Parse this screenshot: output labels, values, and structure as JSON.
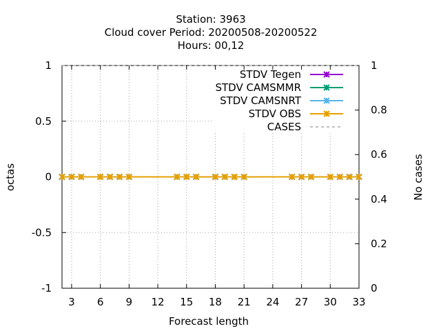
{
  "chart_data": {
    "type": "line",
    "title_lines": [
      "Station:     3963",
      "Cloud cover   Period: 20200508-20200522",
      "Hours:  00,12"
    ],
    "xlabel": "Forecast length",
    "ylabel": "octas",
    "y2label": "No cases",
    "xlim": [
      2,
      33
    ],
    "ylim": [
      -1,
      1
    ],
    "y2lim": [
      0,
      1
    ],
    "x_ticks": [
      3,
      6,
      9,
      12,
      15,
      18,
      21,
      24,
      27,
      30,
      33
    ],
    "y_ticks": [
      -1,
      -0.5,
      0,
      0.5,
      1
    ],
    "y_tick_labels": [
      "-1",
      "-0.5",
      "0",
      "0.5",
      "1"
    ],
    "y2_ticks": [
      0,
      0.2,
      0.4,
      0.6,
      0.8,
      1
    ],
    "y2_tick_labels": [
      "0",
      "0.2",
      "0.4",
      "0.6",
      "0.8",
      "1"
    ],
    "grid": true,
    "legend_position": "top-right",
    "series": [
      {
        "name": "STDV Tegen",
        "color": "#9400d3",
        "marker": "x",
        "dash": "solid",
        "x": [
          2,
          3,
          4,
          6,
          7,
          8,
          9,
          14,
          15,
          16,
          18,
          19,
          20,
          21,
          26,
          27,
          28,
          30,
          31,
          32,
          33
        ],
        "values": [
          0,
          0,
          0,
          0,
          0,
          0,
          0,
          0,
          0,
          0,
          0,
          0,
          0,
          0,
          0,
          0,
          0,
          0,
          0,
          0,
          0
        ]
      },
      {
        "name": "STDV CAMSMMR",
        "color": "#009e73",
        "marker": "x",
        "dash": "solid",
        "x": [
          2,
          3,
          4,
          6,
          7,
          8,
          9,
          14,
          15,
          16,
          18,
          19,
          20,
          21,
          26,
          27,
          28,
          30,
          31,
          32,
          33
        ],
        "values": [
          0,
          0,
          0,
          0,
          0,
          0,
          0,
          0,
          0,
          0,
          0,
          0,
          0,
          0,
          0,
          0,
          0,
          0,
          0,
          0,
          0
        ]
      },
      {
        "name": "STDV CAMSNRT",
        "color": "#56b4e9",
        "marker": "x",
        "dash": "solid",
        "x": [
          2,
          3,
          4,
          6,
          7,
          8,
          9,
          14,
          15,
          16,
          18,
          19,
          20,
          21,
          26,
          27,
          28,
          30,
          31,
          32,
          33
        ],
        "values": [
          0,
          0,
          0,
          0,
          0,
          0,
          0,
          0,
          0,
          0,
          0,
          0,
          0,
          0,
          0,
          0,
          0,
          0,
          0,
          0,
          0
        ]
      },
      {
        "name": "STDV OBS",
        "color": "#e69f00",
        "marker": "x",
        "dash": "solid",
        "x": [
          2,
          3,
          4,
          6,
          7,
          8,
          9,
          14,
          15,
          16,
          18,
          19,
          20,
          21,
          26,
          27,
          28,
          30,
          31,
          32,
          33
        ],
        "values": [
          0,
          0,
          0,
          0,
          0,
          0,
          0,
          0,
          0,
          0,
          0,
          0,
          0,
          0,
          0,
          0,
          0,
          0,
          0,
          0,
          0
        ]
      },
      {
        "name": "CASES",
        "color": "#808080",
        "marker": "none",
        "dash": "dashed",
        "axis": "y2",
        "x": [
          2,
          33
        ],
        "values": [
          1,
          1
        ]
      }
    ]
  }
}
